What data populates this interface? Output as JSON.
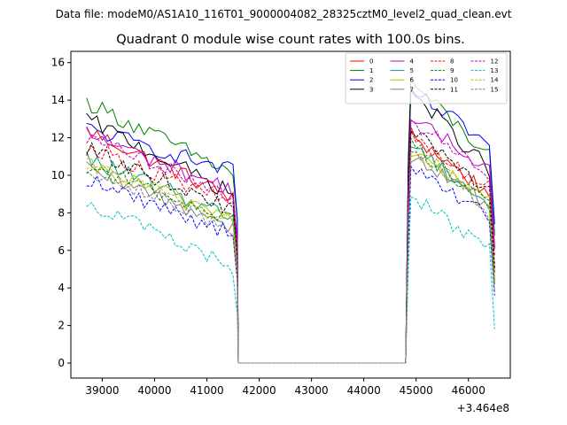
{
  "chart_data": {
    "type": "line",
    "suptitle": "Data file: modeM0/AS1A10_116T01_9000004082_28325cztM0_level2_quad_clean.evt",
    "title": "Quadrant 0 module wise count rates with 100.0s bins.",
    "xlabel": "",
    "ylabel": "",
    "x_offset_label": "+3.464e8",
    "xlim": [
      38400,
      46800
    ],
    "ylim": [
      -0.8,
      16.6
    ],
    "xticks": [
      39000,
      40000,
      41000,
      42000,
      43000,
      44000,
      45000,
      46000
    ],
    "xtick_labels": [
      "39000",
      "40000",
      "41000",
      "42000",
      "43000",
      "44000",
      "45000",
      "46000"
    ],
    "yticks": [
      0,
      2,
      4,
      6,
      8,
      10,
      12,
      14,
      16
    ],
    "ytick_labels": [
      "0",
      "2",
      "4",
      "6",
      "8",
      "10",
      "12",
      "14",
      "16"
    ],
    "legend_position": "top-right",
    "legend_columns": 4,
    "segments": [
      {
        "x_start": 38700,
        "x_end": 41600,
        "bin": 100
      },
      {
        "x_start": 41600,
        "x_end": 44800,
        "bin": 100,
        "gap": true
      },
      {
        "x_start": 44800,
        "x_end": 46500,
        "bin": 100
      }
    ],
    "series": [
      {
        "name": "0",
        "color": "#ff0000",
        "dash": false,
        "start1": 12.4,
        "end1": 8.8,
        "start2": 12.2,
        "end2": 9.0
      },
      {
        "name": "1",
        "color": "#008000",
        "dash": false,
        "start1": 13.9,
        "end1": 10.1,
        "start2": 15.0,
        "end2": 11.0
      },
      {
        "name": "2",
        "color": "#0000ff",
        "dash": false,
        "start1": 12.5,
        "end1": 10.2,
        "start2": 14.5,
        "end2": 11.6
      },
      {
        "name": "3",
        "color": "#000000",
        "dash": false,
        "start1": 13.0,
        "end1": 9.0,
        "start2": 14.5,
        "end2": 10.3
      },
      {
        "name": "4",
        "color": "#bf00bf",
        "dash": false,
        "start1": 12.2,
        "end1": 9.2,
        "start2": 13.0,
        "end2": 10.4
      },
      {
        "name": "5",
        "color": "#00a080",
        "dash": false,
        "start1": 10.9,
        "end1": 7.8,
        "start2": 11.7,
        "end2": 8.4
      },
      {
        "name": "6",
        "color": "#bfbf00",
        "dash": false,
        "start1": 10.5,
        "end1": 7.8,
        "start2": 11.3,
        "end2": 8.6
      },
      {
        "name": "7",
        "color": "#808080",
        "dash": false,
        "start1": 10.3,
        "end1": 7.3,
        "start2": 11.1,
        "end2": 8.4
      },
      {
        "name": "8",
        "color": "#ff0000",
        "dash": true,
        "start1": 11.6,
        "end1": 8.5,
        "start2": 12.0,
        "end2": 9.3
      },
      {
        "name": "9",
        "color": "#008000",
        "dash": true,
        "start1": 10.5,
        "end1": 7.6,
        "start2": 11.7,
        "end2": 8.6
      },
      {
        "name": "10",
        "color": "#0000ff",
        "dash": true,
        "start1": 9.8,
        "end1": 6.9,
        "start2": 10.3,
        "end2": 7.8
      },
      {
        "name": "11",
        "color": "#000000",
        "dash": true,
        "start1": 11.4,
        "end1": 8.2,
        "start2": 12.3,
        "end2": 9.2
      },
      {
        "name": "12",
        "color": "#bf00bf",
        "dash": true,
        "start1": 12.0,
        "end1": 8.9,
        "start2": 13.0,
        "end2": 9.9
      },
      {
        "name": "13",
        "color": "#00bfbf",
        "dash": true,
        "start1": 8.6,
        "end1": 5.1,
        "start2": 9.0,
        "end2": 6.0
      },
      {
        "name": "14",
        "color": "#bfbf00",
        "dash": true,
        "start1": 10.6,
        "end1": 7.5,
        "start2": 11.5,
        "end2": 8.4
      },
      {
        "name": "15",
        "color": "#808080",
        "dash": true,
        "start1": 10.4,
        "end1": 7.1,
        "start2": 11.6,
        "end2": 8.0
      }
    ]
  }
}
